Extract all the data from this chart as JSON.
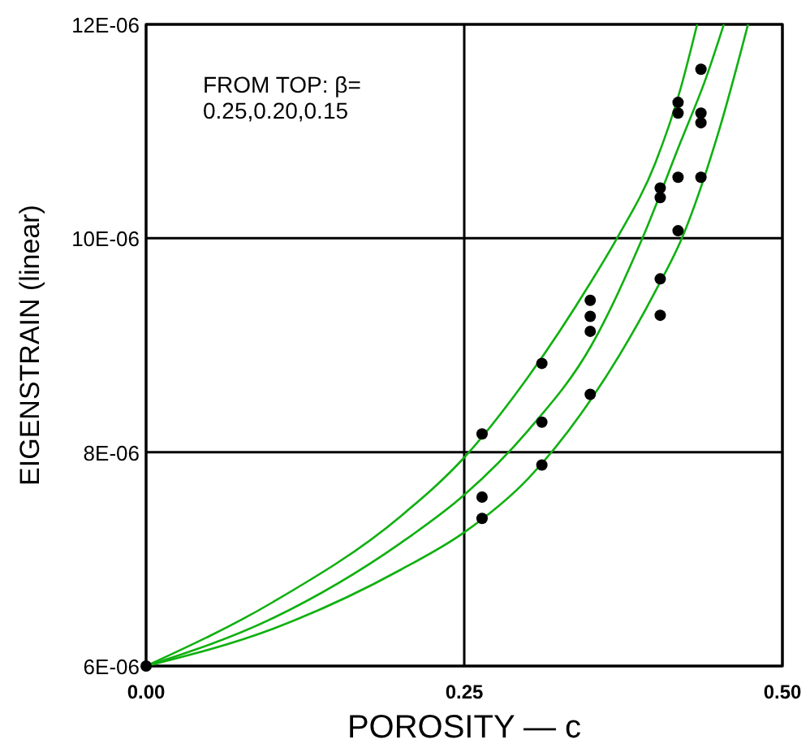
{
  "chart_data": {
    "type": "line",
    "xlabel": "POROSITY  —  c",
    "ylabel": "EIGENSTRAIN (linear)",
    "annotations": [
      "FROM TOP: β=\n0.25,0.20,0.15"
    ],
    "xlim": [
      0,
      0.5
    ],
    "xticks": [
      {
        "value": 0,
        "label": "0.00"
      },
      0.25,
      {
        "value": 0.5,
        "label": "0.50"
      }
    ],
    "ylim": [
      6e-06,
      1.2e-05
    ],
    "yticks": [
      {
        "value": 6e-06,
        "label": "6E-06"
      },
      {
        "value": 8e-06,
        "label": "8E-06"
      },
      {
        "value": 1e-05,
        "label": "10E-06"
      },
      {
        "value": 1.2e-05,
        "label": "12E-06"
      }
    ],
    "grid": true,
    "series": [
      {
        "color": "#10b010",
        "x": [
          0,
          0.1,
          0.2,
          0.25,
          0.3,
          0.35,
          0.37,
          0.4,
          0.42,
          0.433
        ],
        "values": [
          6e-06,
          6.6e-06,
          7.4e-06,
          7.95e-06,
          8.7e-06,
          9.6e-06,
          1e-05,
          1.07e-05,
          1.14e-05,
          1.2e-05
        ]
      },
      {
        "color": "#10b010",
        "x": [
          0,
          0.1,
          0.2,
          0.25,
          0.3,
          0.35,
          0.39,
          0.42,
          0.44,
          0.454
        ],
        "values": [
          6e-06,
          6.45e-06,
          7.15e-06,
          7.6e-06,
          8.2e-06,
          9e-06,
          1e-05,
          1.09e-05,
          1.15e-05,
          1.2e-05
        ]
      },
      {
        "color": "#10b010",
        "x": [
          0,
          0.1,
          0.2,
          0.25,
          0.3,
          0.35,
          0.4,
          0.421,
          0.45,
          0.473
        ],
        "values": [
          6e-06,
          6.35e-06,
          6.9e-06,
          7.25e-06,
          7.75e-06,
          8.5e-06,
          9.5e-06,
          1e-05,
          1.1e-05,
          1.2e-05
        ]
      },
      {
        "type": "scatter",
        "color": "#000000",
        "marker": "circle",
        "x": [
          0,
          0.264,
          0.264,
          0.264,
          0.311,
          0.311,
          0.311,
          0.349,
          0.349,
          0.349,
          0.349,
          0.404,
          0.404,
          0.404,
          0.404,
          0.418,
          0.418,
          0.418,
          0.418,
          0.436,
          0.436,
          0.436,
          0.436
        ],
        "values": [
          6e-06,
          8.17e-06,
          7.58e-06,
          7.38e-06,
          8.83e-06,
          8.28e-06,
          7.88e-06,
          9.42e-06,
          9.27e-06,
          9.13e-06,
          8.54e-06,
          1.047e-05,
          1.038e-05,
          9.62e-06,
          9.28e-06,
          1.127e-05,
          1.117e-05,
          1.057e-05,
          1.007e-05,
          1.158e-05,
          1.117e-05,
          1.108e-05,
          1.057e-05
        ]
      }
    ]
  }
}
